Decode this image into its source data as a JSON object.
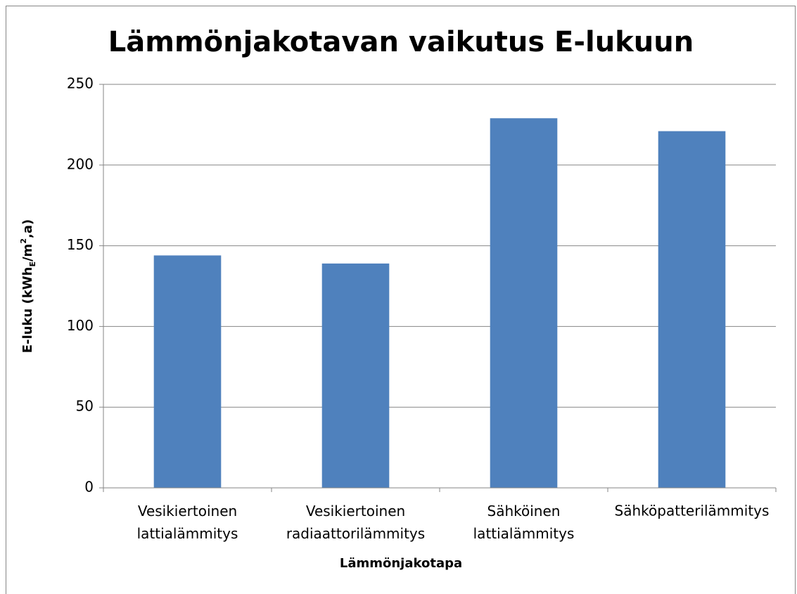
{
  "chart_data": {
    "type": "bar",
    "title": "Lämmönjakotavan vaikutus E-lukuun",
    "x_label": "Lämmönjakotapa",
    "y_label": [
      "E-luku (kWh",
      "E",
      "/m",
      "2",
      ",a)"
    ],
    "categories": [
      "Vesikiertoinen lattialämmitys",
      "Vesikiertoinen radiaattorilämmitys",
      "Sähköinen lattialämmitys",
      "Sähköpatterilämmitys"
    ],
    "values": [
      144,
      139,
      229,
      221
    ],
    "color": "#4f81bd",
    "ylim": [
      0,
      250
    ],
    "yticks": [
      0,
      50,
      100,
      150,
      200,
      250
    ],
    "grid": true
  }
}
